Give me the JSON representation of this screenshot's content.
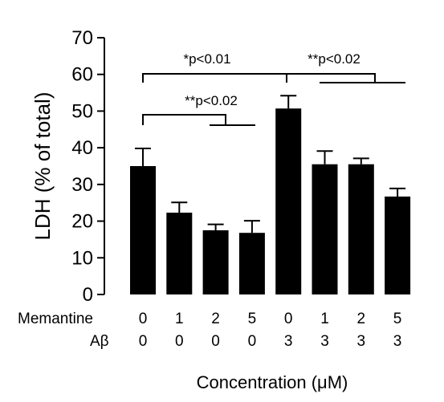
{
  "chart_data": {
    "type": "bar",
    "title": "",
    "ylabel": "LDH (% of total)",
    "xlabel": "Concentration (μM)",
    "ylim": [
      0,
      70
    ],
    "yticks": [
      "0",
      "10",
      "20",
      "30",
      "40",
      "50",
      "60",
      "70"
    ],
    "rows": [
      {
        "label": "Memantine",
        "values": [
          "0",
          "1",
          "2",
          "5",
          "0",
          "1",
          "2",
          "5"
        ]
      },
      {
        "label": "Aβ",
        "values": [
          "0",
          "0",
          "0",
          "0",
          "3",
          "3",
          "3",
          "3"
        ]
      }
    ],
    "values": [
      35,
      22.3,
      17.5,
      16.8,
      50.7,
      35.5,
      35.5,
      26.7
    ],
    "errors": [
      4.8,
      2.8,
      1.6,
      3.3,
      3.5,
      3.6,
      1.6,
      2.2
    ],
    "bar_color": "#000000",
    "annotations": [
      "*p<0.01",
      "**p<0.02",
      "**p<0.02"
    ]
  }
}
